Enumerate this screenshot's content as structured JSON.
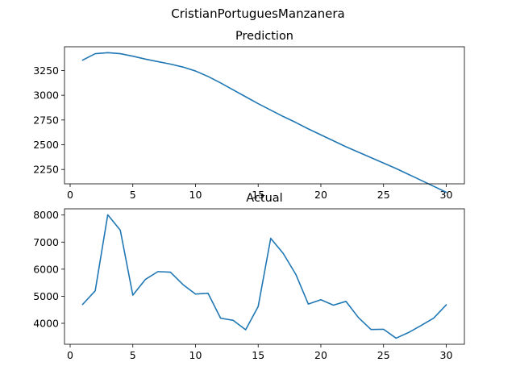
{
  "figure": {
    "suptitle": "CristianPortuguesManzanera"
  },
  "chart_data": [
    {
      "type": "line",
      "title": "Prediction",
      "xlabel": "",
      "ylabel": "",
      "xlim": [
        -0.45,
        31.45
      ],
      "ylim": [
        2105,
        3490
      ],
      "xticks": [
        0,
        5,
        10,
        15,
        20,
        25,
        30
      ],
      "yticks": [
        2250,
        2500,
        2750,
        3000,
        3250
      ],
      "grid": false,
      "series": [
        {
          "color": "#1f77b4",
          "x": [
            1,
            2,
            3,
            4,
            5,
            6,
            7,
            8,
            9,
            10,
            11,
            12,
            13,
            14,
            15,
            16,
            17,
            18,
            19,
            20,
            21,
            22,
            23,
            24,
            25,
            26,
            27,
            28,
            29,
            30
          ],
          "y": [
            3355,
            3420,
            3430,
            3420,
            3395,
            3365,
            3340,
            3315,
            3285,
            3245,
            3190,
            3125,
            3055,
            2985,
            2915,
            2850,
            2785,
            2725,
            2660,
            2600,
            2540,
            2480,
            2425,
            2370,
            2315,
            2260,
            2200,
            2140,
            2080,
            2020
          ]
        }
      ]
    },
    {
      "type": "line",
      "title": "Actual",
      "xlabel": "",
      "ylabel": "",
      "xlim": [
        -0.45,
        31.45
      ],
      "ylim": [
        3225,
        8230
      ],
      "xticks": [
        0,
        5,
        10,
        15,
        20,
        25,
        30
      ],
      "yticks": [
        4000,
        5000,
        6000,
        7000,
        8000
      ],
      "grid": false,
      "series": [
        {
          "color": "#1f77b4",
          "x": [
            1,
            2,
            3,
            4,
            5,
            6,
            7,
            8,
            9,
            10,
            11,
            12,
            13,
            14,
            15,
            16,
            17,
            18,
            19,
            20,
            21,
            22,
            23,
            24,
            25,
            26,
            27,
            28,
            29,
            30
          ],
          "y": [
            4700,
            5200,
            8010,
            7440,
            5040,
            5620,
            5910,
            5890,
            5430,
            5080,
            5110,
            4190,
            4110,
            3760,
            4620,
            7140,
            6580,
            5810,
            4710,
            4870,
            4670,
            4810,
            4210,
            3770,
            3780,
            3450,
            3660,
            3920,
            4190,
            4680
          ]
        }
      ]
    }
  ]
}
